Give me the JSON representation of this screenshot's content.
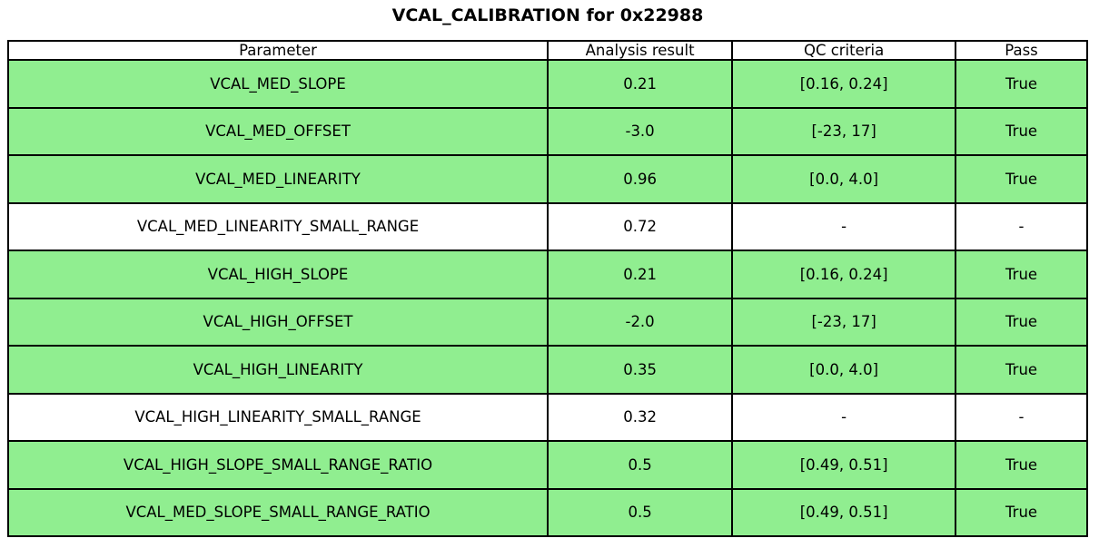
{
  "title": "VCAL_CALIBRATION for 0x22988",
  "colors": {
    "pass_row_bg": "#90ee90",
    "neutral_row_bg": "#ffffff",
    "border": "#000000",
    "text": "#000000"
  },
  "table": {
    "columns": [
      "Parameter",
      "Analysis result",
      "QC criteria",
      "Pass"
    ],
    "column_widths_percent": [
      50,
      17.1,
      20.7,
      12.2
    ],
    "rows": [
      {
        "cells": [
          "VCAL_MED_SLOPE",
          "0.21",
          "[0.16, 0.24]",
          "True"
        ],
        "highlight": true
      },
      {
        "cells": [
          "VCAL_MED_OFFSET",
          "-3.0",
          "[-23, 17]",
          "True"
        ],
        "highlight": true
      },
      {
        "cells": [
          "VCAL_MED_LINEARITY",
          "0.96",
          "[0.0, 4.0]",
          "True"
        ],
        "highlight": true
      },
      {
        "cells": [
          "VCAL_MED_LINEARITY_SMALL_RANGE",
          "0.72",
          "-",
          "-"
        ],
        "highlight": false
      },
      {
        "cells": [
          "VCAL_HIGH_SLOPE",
          "0.21",
          "[0.16, 0.24]",
          "True"
        ],
        "highlight": true
      },
      {
        "cells": [
          "VCAL_HIGH_OFFSET",
          "-2.0",
          "[-23, 17]",
          "True"
        ],
        "highlight": true
      },
      {
        "cells": [
          "VCAL_HIGH_LINEARITY",
          "0.35",
          "[0.0, 4.0]",
          "True"
        ],
        "highlight": true
      },
      {
        "cells": [
          "VCAL_HIGH_LINEARITY_SMALL_RANGE",
          "0.32",
          "-",
          "-"
        ],
        "highlight": false
      },
      {
        "cells": [
          "VCAL_HIGH_SLOPE_SMALL_RANGE_RATIO",
          "0.5",
          "[0.49, 0.51]",
          "True"
        ],
        "highlight": true
      },
      {
        "cells": [
          "VCAL_MED_SLOPE_SMALL_RANGE_RATIO",
          "0.5",
          "[0.49, 0.51]",
          "True"
        ],
        "highlight": true
      }
    ]
  }
}
